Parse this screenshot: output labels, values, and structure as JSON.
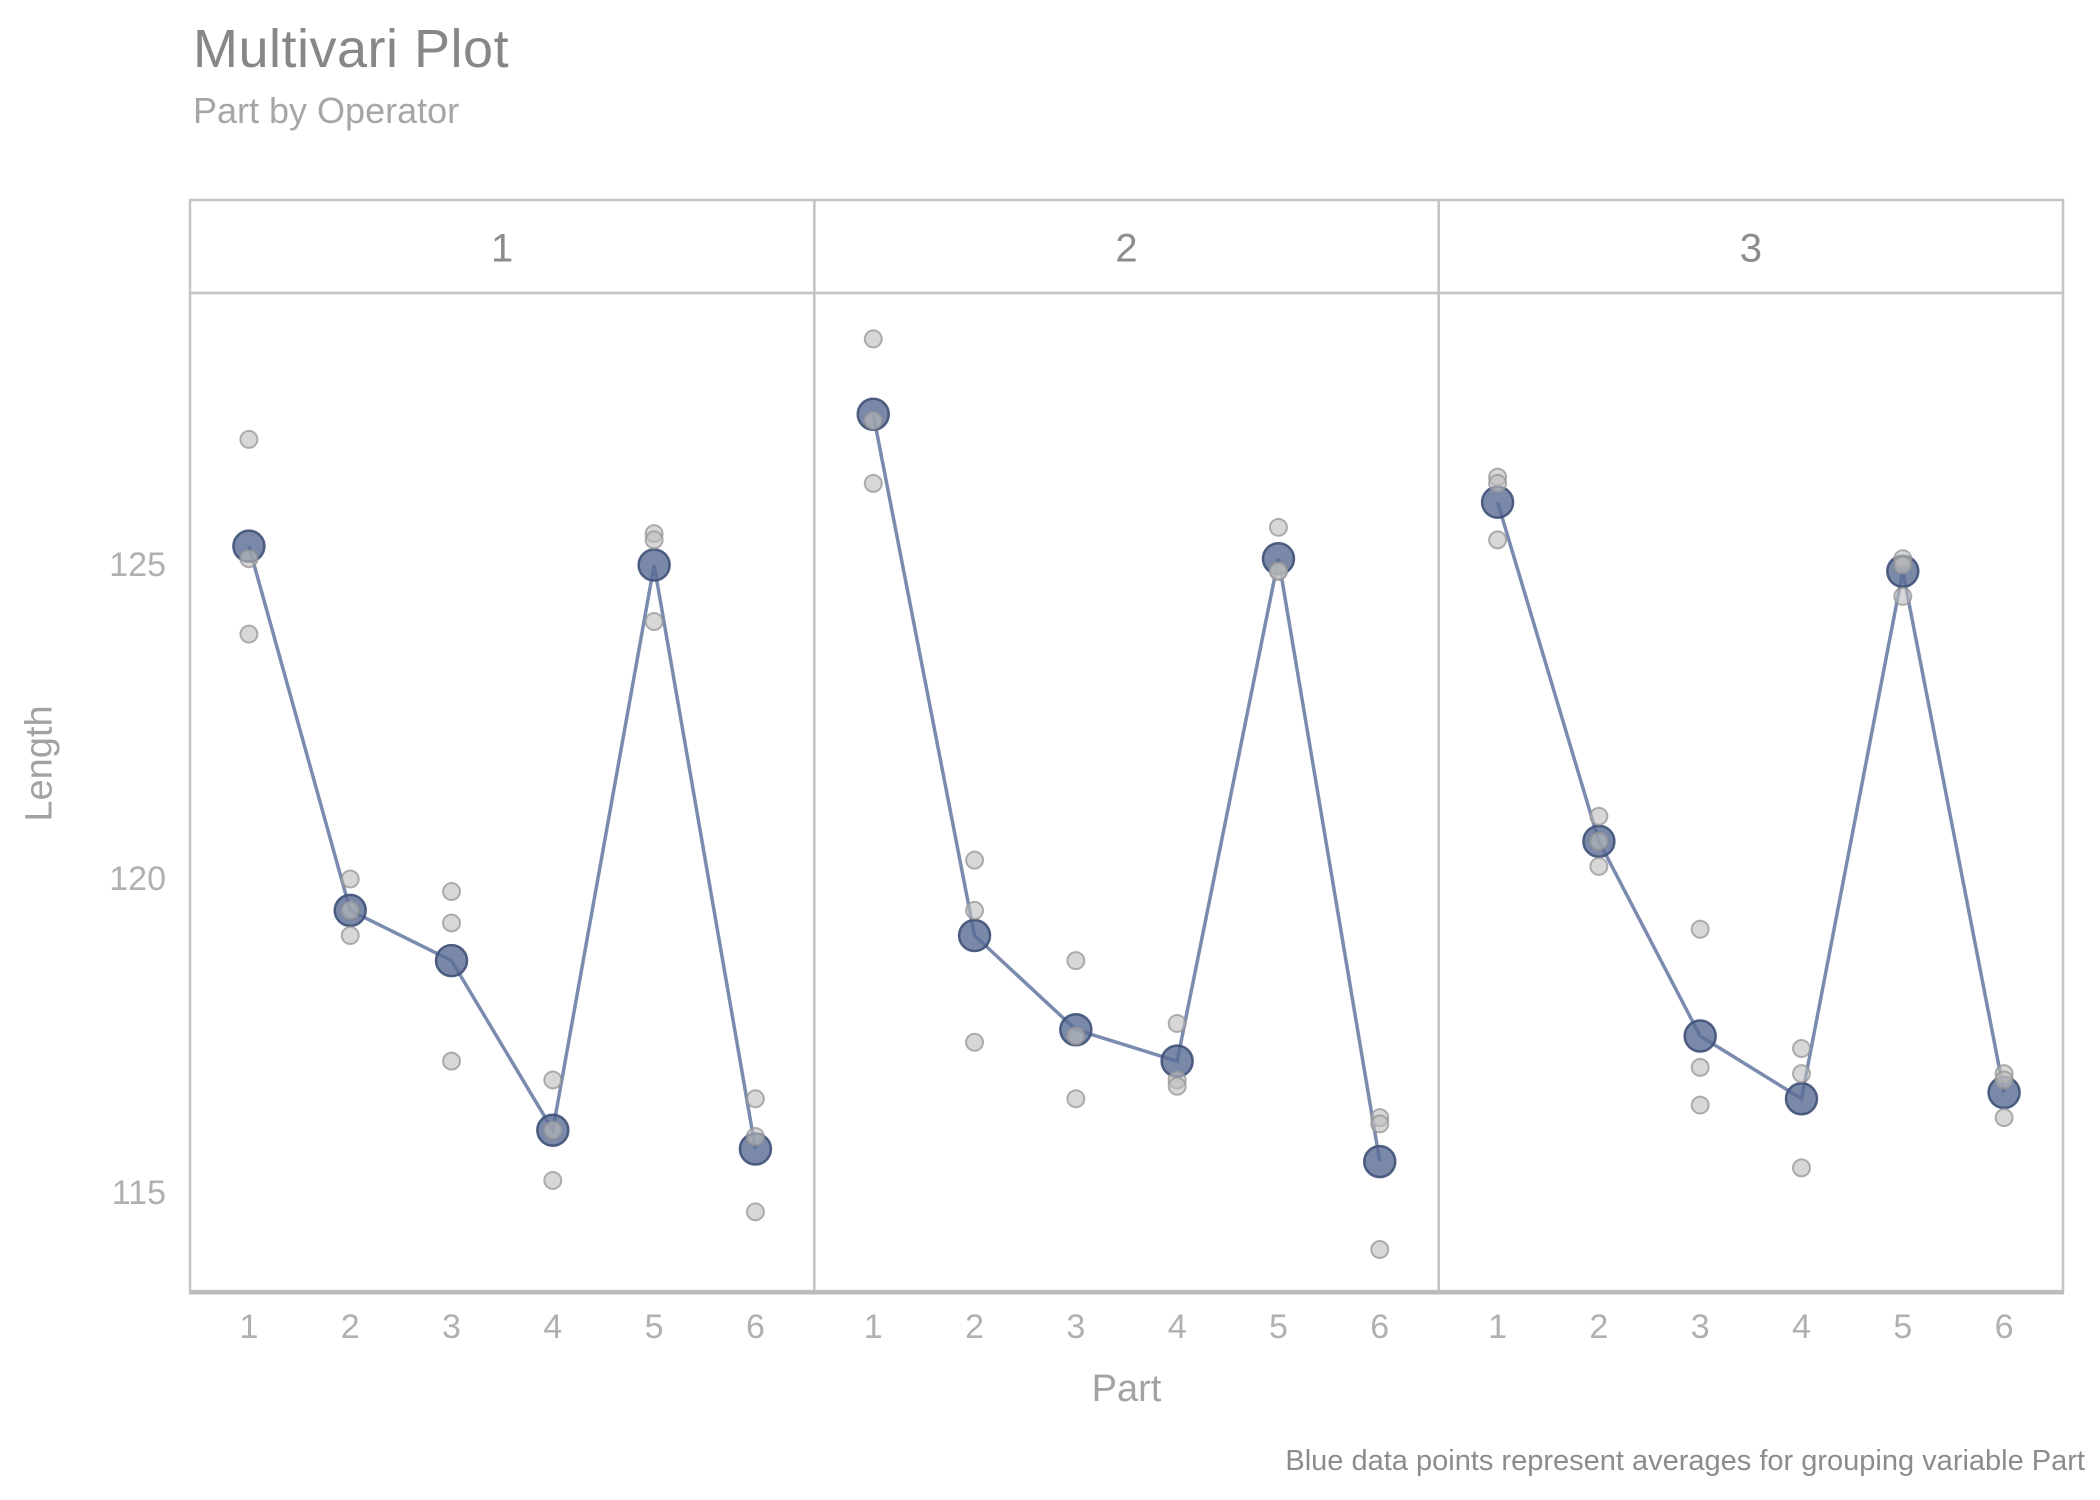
{
  "title": "Multivari Plot",
  "subtitle": "Part by Operator",
  "footer_note": "Blue data points represent averages for grouping variable Part",
  "x_axis_title": "Part",
  "y_axis_title": "Length",
  "colors": {
    "mean_point_fill": "#5a6b94",
    "mean_point_stroke": "#3f5178",
    "raw_point_fill": "#bdbdbd",
    "raw_point_stroke": "#969696",
    "mean_line": "#6c7ea6",
    "panel_border": "#c5c5c5",
    "bottom_axis": "#bcbcbc",
    "header_text": "#8c8c8c",
    "tick_text": "#b0b0b0"
  },
  "chart_data": {
    "type": "scatter",
    "subtype": "multivari-faceted-means",
    "facet_variable": "Operator",
    "x_variable": "Part",
    "y_variable": "Length",
    "facet_labels": [
      "1",
      "2",
      "3"
    ],
    "x_categories": [
      "1",
      "2",
      "3",
      "4",
      "5",
      "6"
    ],
    "y_ticks": [
      115,
      120,
      125
    ],
    "ylim": [
      113.4,
      129.3
    ],
    "grid": false,
    "legend": false,
    "facets": [
      {
        "operator": "1",
        "groups": [
          {
            "part": "1",
            "values": [
              127.0,
              125.1,
              123.9
            ],
            "mean": 125.3
          },
          {
            "part": "2",
            "values": [
              120.0,
              119.5,
              119.1
            ],
            "mean": 119.5
          },
          {
            "part": "3",
            "values": [
              119.8,
              119.3,
              117.1
            ],
            "mean": 118.7
          },
          {
            "part": "4",
            "values": [
              116.8,
              116.0,
              115.2
            ],
            "mean": 116.0
          },
          {
            "part": "5",
            "values": [
              125.5,
              125.4,
              124.1
            ],
            "mean": 125.0
          },
          {
            "part": "6",
            "values": [
              116.5,
              115.9,
              114.7
            ],
            "mean": 115.7
          }
        ]
      },
      {
        "operator": "2",
        "groups": [
          {
            "part": "1",
            "values": [
              128.6,
              127.3,
              126.3
            ],
            "mean": 127.4
          },
          {
            "part": "2",
            "values": [
              120.3,
              119.5,
              117.4
            ],
            "mean": 119.1
          },
          {
            "part": "3",
            "values": [
              118.7,
              117.5,
              116.5
            ],
            "mean": 117.6
          },
          {
            "part": "4",
            "values": [
              117.7,
              116.8,
              116.7
            ],
            "mean": 117.1
          },
          {
            "part": "5",
            "values": [
              125.6,
              124.9,
              124.9
            ],
            "mean": 125.1
          },
          {
            "part": "6",
            "values": [
              116.2,
              116.1,
              114.1
            ],
            "mean": 115.5
          }
        ]
      },
      {
        "operator": "3",
        "groups": [
          {
            "part": "1",
            "values": [
              126.4,
              126.3,
              125.4
            ],
            "mean": 126.0
          },
          {
            "part": "2",
            "values": [
              121.0,
              120.6,
              120.2
            ],
            "mean": 120.6
          },
          {
            "part": "3",
            "values": [
              119.2,
              117.0,
              116.4
            ],
            "mean": 117.5
          },
          {
            "part": "4",
            "values": [
              117.3,
              116.9,
              115.4
            ],
            "mean": 116.5
          },
          {
            "part": "5",
            "values": [
              125.1,
              125.0,
              124.5
            ],
            "mean": 124.9
          },
          {
            "part": "6",
            "values": [
              116.9,
              116.8,
              116.2
            ],
            "mean": 116.6
          }
        ]
      }
    ]
  }
}
